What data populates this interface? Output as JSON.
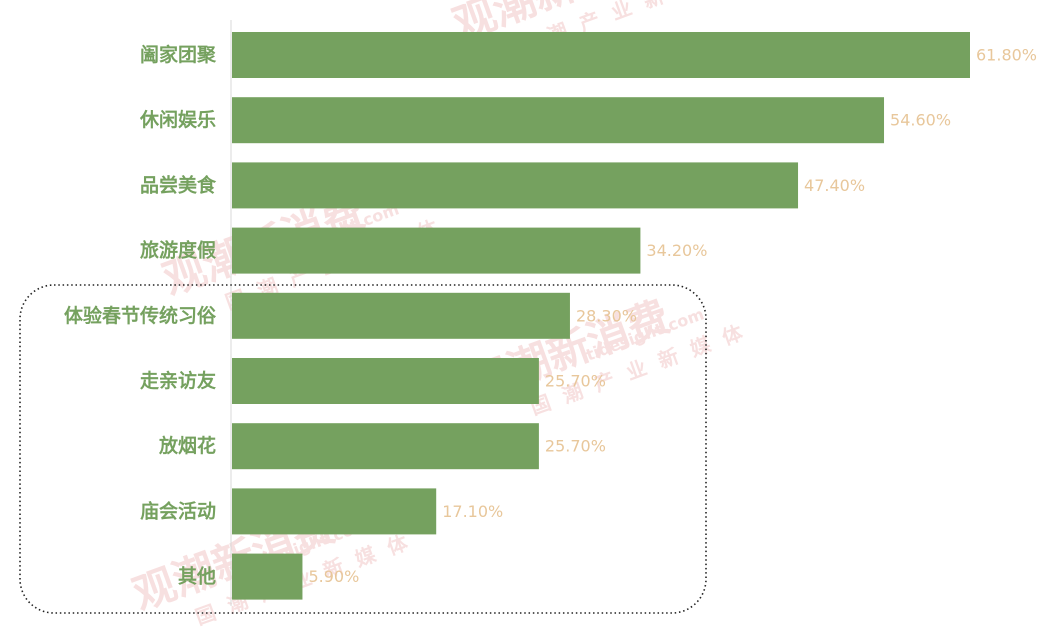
{
  "colors": {
    "bar": "#75a15f",
    "category_label": "#75a15f",
    "value_label": "#e8c79b",
    "axis": "#d9d9d9",
    "highlight_box": "#222222",
    "watermark": "#f2c7c7"
  },
  "watermark": {
    "brand": "观潮新消费",
    "domain": "tidesight.com",
    "tagline": "国潮产业新媒体"
  },
  "chart_data": {
    "type": "bar",
    "orientation": "horizontal",
    "categories": [
      "阖家团聚",
      "休闲娱乐",
      "品尝美食",
      "旅游度假",
      "体验春节传统习俗",
      "走亲访友",
      "放烟花",
      "庙会活动",
      "其他"
    ],
    "values": [
      61.8,
      54.6,
      47.4,
      34.2,
      28.3,
      25.7,
      25.7,
      17.1,
      5.9
    ],
    "value_labels": [
      "61.80%",
      "54.60%",
      "47.40%",
      "34.20%",
      "28.30%",
      "25.70%",
      "25.70%",
      "17.10%",
      "5.90%"
    ],
    "unit": "%",
    "xlim": [
      0,
      61.8
    ],
    "grid": false,
    "legend": "none",
    "highlight": {
      "style": "dotted rounded box",
      "from_category": "体验春节传统习俗",
      "to_category": "其他"
    }
  }
}
